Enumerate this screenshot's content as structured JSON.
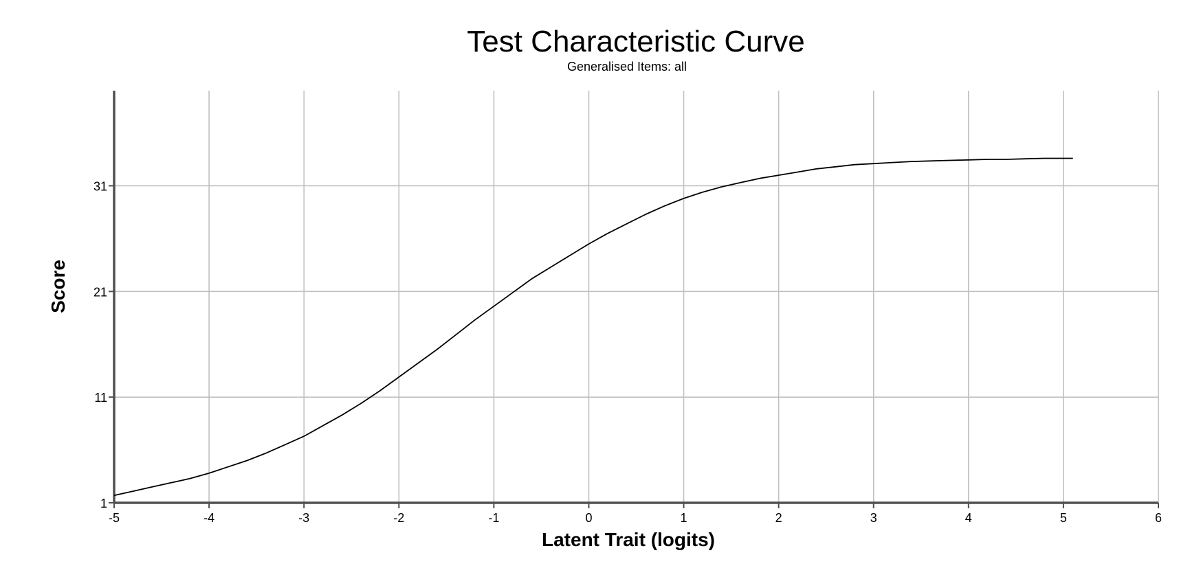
{
  "chart_data": {
    "type": "line",
    "title": "Test Characteristic Curve",
    "subtitle": "Generalised Items: all",
    "xlabel": "Latent Trait (logits)",
    "ylabel": "Score",
    "xlim": [
      -5,
      6
    ],
    "ylim": [
      1,
      40
    ],
    "x_ticks": [
      -5,
      -4,
      -3,
      -2,
      -1,
      0,
      1,
      2,
      3,
      4,
      5,
      6
    ],
    "y_ticks": [
      1,
      11,
      21,
      31
    ],
    "grid": true,
    "colors": {
      "line": "#000000",
      "grid": "#c0c0c0",
      "axis": "#505050"
    },
    "series": [
      {
        "x": [
          -5.0,
          -4.8,
          -4.6,
          -4.4,
          -4.2,
          -4.0,
          -3.8,
          -3.6,
          -3.4,
          -3.2,
          -3.0,
          -2.8,
          -2.6,
          -2.4,
          -2.2,
          -2.0,
          -1.8,
          -1.6,
          -1.4,
          -1.2,
          -1.0,
          -0.8,
          -0.6,
          -0.4,
          -0.2,
          0.0,
          0.2,
          0.4,
          0.6,
          0.8,
          1.0,
          1.2,
          1.4,
          1.6,
          1.8,
          2.0,
          2.2,
          2.4,
          2.6,
          2.8,
          3.0,
          3.2,
          3.4,
          3.6,
          3.8,
          4.0,
          4.2,
          4.4,
          4.6,
          4.8,
          5.1
        ],
        "y": [
          1.7,
          2.1,
          2.5,
          2.9,
          3.3,
          3.8,
          4.4,
          5.0,
          5.7,
          6.5,
          7.3,
          8.3,
          9.3,
          10.4,
          11.6,
          12.9,
          14.2,
          15.5,
          16.9,
          18.3,
          19.6,
          20.9,
          22.2,
          23.3,
          24.4,
          25.5,
          26.5,
          27.4,
          28.3,
          29.1,
          29.8,
          30.4,
          30.9,
          31.3,
          31.7,
          32.0,
          32.3,
          32.6,
          32.8,
          33.0,
          33.1,
          33.2,
          33.3,
          33.35,
          33.4,
          33.45,
          33.5,
          33.5,
          33.55,
          33.6,
          33.6
        ]
      }
    ]
  }
}
